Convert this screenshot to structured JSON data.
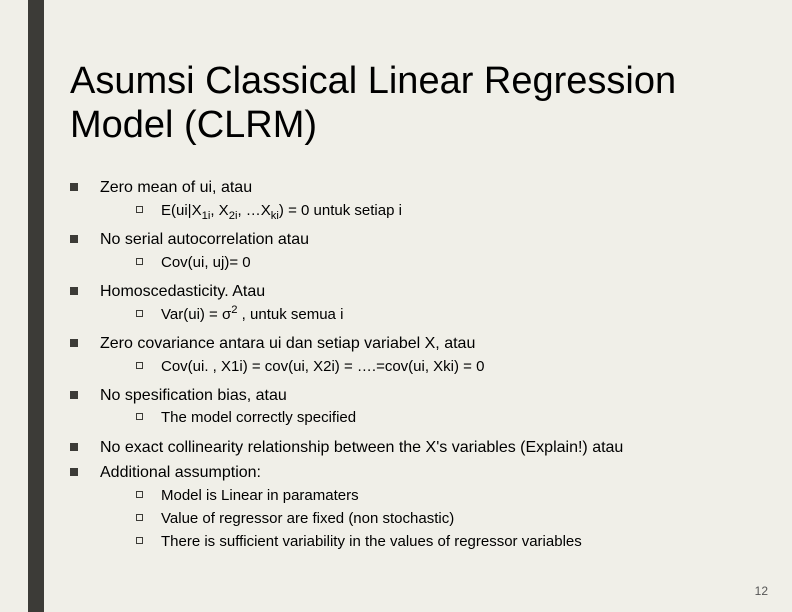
{
  "slide": {
    "accent_color": "#3c3b37",
    "background_color": "#f0efe8",
    "title_fontsize": 38,
    "body_fontsize": 16,
    "sub_fontsize": 15,
    "title": "Asumsi Classical Linear Regression Model (CLRM)",
    "page_number": "12",
    "items": [
      {
        "text": "Zero mean of ui, atau",
        "sub": [
          {
            "html": "E(ui|X<sub>1i</sub>, X<sub>2i</sub>, …X<sub>ki</sub>) = 0 untuk setiap i"
          }
        ]
      },
      {
        "text": "No serial autocorrelation atau",
        "sub": [
          {
            "text": "Cov(ui, uj)= 0"
          }
        ]
      },
      {
        "text": "Homoscedasticity. Atau",
        "sub": [
          {
            "html": "Var(ui) = σ<sup>2</sup> , untuk semua i"
          }
        ]
      },
      {
        "text": "Zero covariance antara ui dan setiap variabel X, atau",
        "sub": [
          {
            "text": "Cov(ui. , X1i) = cov(ui, X2i) = ….=cov(ui, Xki) = 0"
          }
        ]
      },
      {
        "text": "No spesification bias, atau",
        "sub": [
          {
            "text": "The model correctly specified"
          }
        ]
      },
      {
        "text": "No exact collinearity relationship  between the X's variables (Explain!)  atau",
        "sub": []
      },
      {
        "text": "Additional assumption:",
        "sub": [
          {
            "text": "Model is Linear in paramaters"
          },
          {
            "text": "Value of regressor are fixed (non stochastic)"
          },
          {
            "text": "There is sufficient variability in the values of regressor variables"
          }
        ]
      }
    ]
  }
}
